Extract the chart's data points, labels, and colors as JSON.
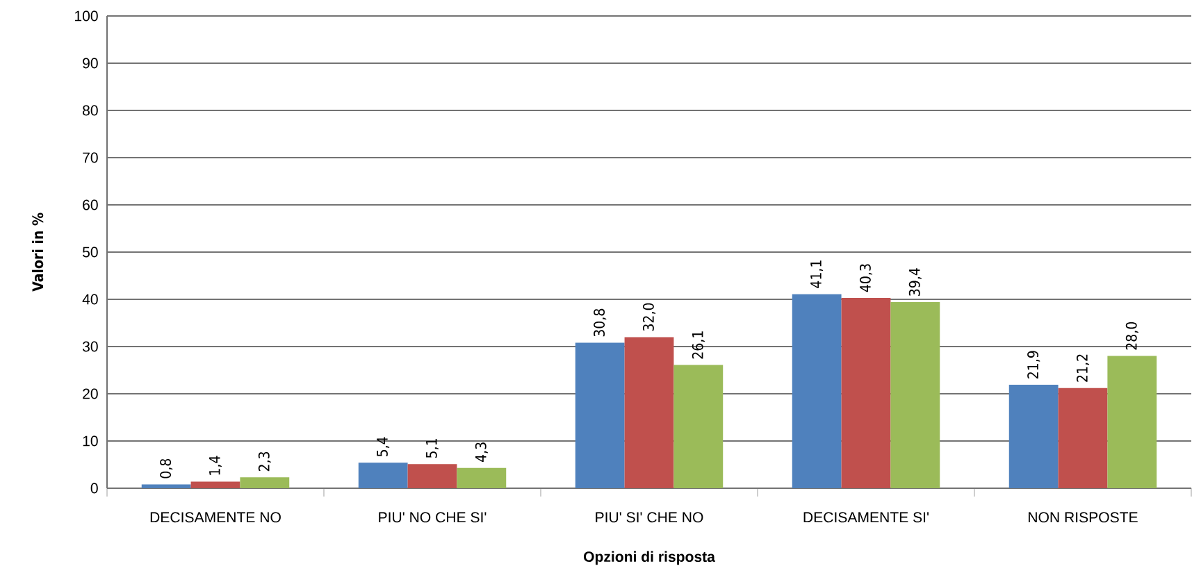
{
  "chart_data": {
    "type": "bar",
    "xlabel": "Opzioni di risposta",
    "ylabel": "Valori in %",
    "categories": [
      "DECISAMENTE NO",
      "PIU' NO CHE SI'",
      "PIU' SI' CHE NO",
      "DECISAMENTE SI'",
      "NON RISPOSTE"
    ],
    "series": [
      {
        "color": "#4f81bd",
        "values": [
          0.8,
          5.4,
          30.8,
          41.1,
          21.9
        ],
        "value_labels": [
          "0,8",
          "5,4",
          "30,8",
          "41,1",
          "21,9"
        ]
      },
      {
        "color": "#c0504d",
        "values": [
          1.4,
          5.1,
          32.0,
          40.3,
          21.2
        ],
        "value_labels": [
          "1,4",
          "5,1",
          "32,0",
          "40,3",
          "21,2"
        ]
      },
      {
        "color": "#9bbb59",
        "values": [
          2.3,
          4.3,
          26.1,
          39.4,
          28.0
        ],
        "value_labels": [
          "2,3",
          "4,3",
          "26,1",
          "39,4",
          "28,0"
        ]
      }
    ],
    "ylim": [
      0,
      100
    ],
    "yticks": [
      0,
      10,
      20,
      30,
      40,
      50,
      60,
      70,
      80,
      90,
      100
    ],
    "grid": "y"
  }
}
